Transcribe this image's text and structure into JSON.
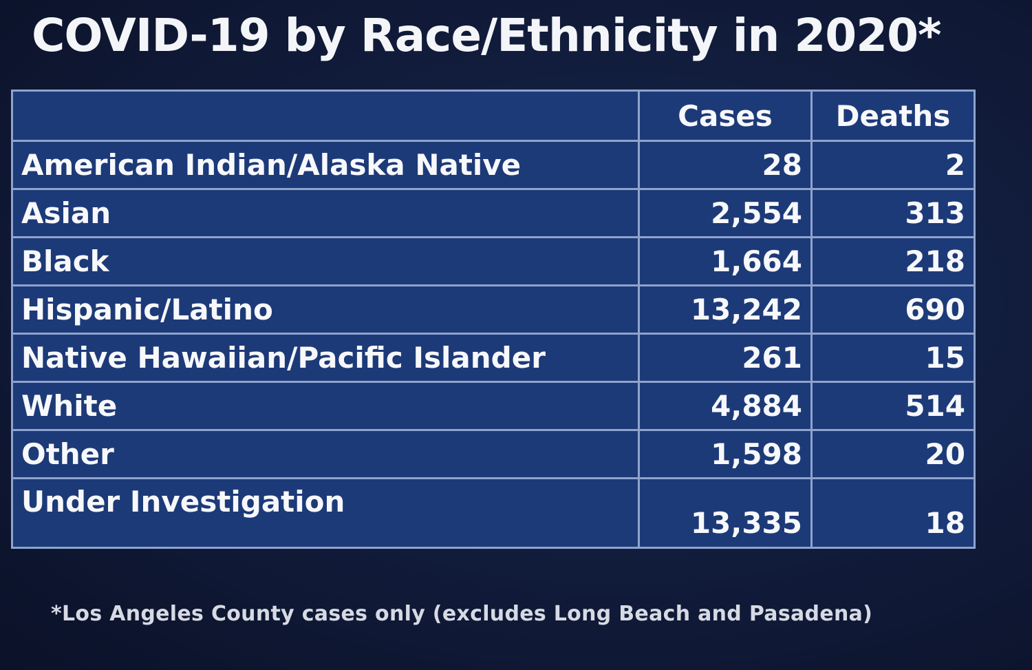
{
  "chart_data": {
    "type": "table",
    "title": "COVID-19 by Race/Ethnicity in 2020*",
    "columns": [
      "",
      "Cases",
      "Deaths"
    ],
    "rows": [
      {
        "category": "American Indian/Alaska Native",
        "cases": "28",
        "deaths": "2"
      },
      {
        "category": "Asian",
        "cases": "2,554",
        "deaths": "313"
      },
      {
        "category": "Black",
        "cases": "1,664",
        "deaths": "218"
      },
      {
        "category": "Hispanic/Latino",
        "cases": "13,242",
        "deaths": "690"
      },
      {
        "category": "Native Hawaiian/Pacific Islander",
        "cases": "261",
        "deaths": "15"
      },
      {
        "category": "White",
        "cases": "4,884",
        "deaths": "514"
      },
      {
        "category": "Other",
        "cases": "1,598",
        "deaths": "20"
      },
      {
        "category": "Under Investigation",
        "cases": "13,335",
        "deaths": "18"
      }
    ],
    "footnote": "*Los Angeles County cases only (excludes Long Beach and Pasadena)"
  },
  "colors": {
    "background": "#121d3d",
    "table_fill": "#1d3a78",
    "grid_lines": "#8fa4cd",
    "text": "#ffffff"
  }
}
